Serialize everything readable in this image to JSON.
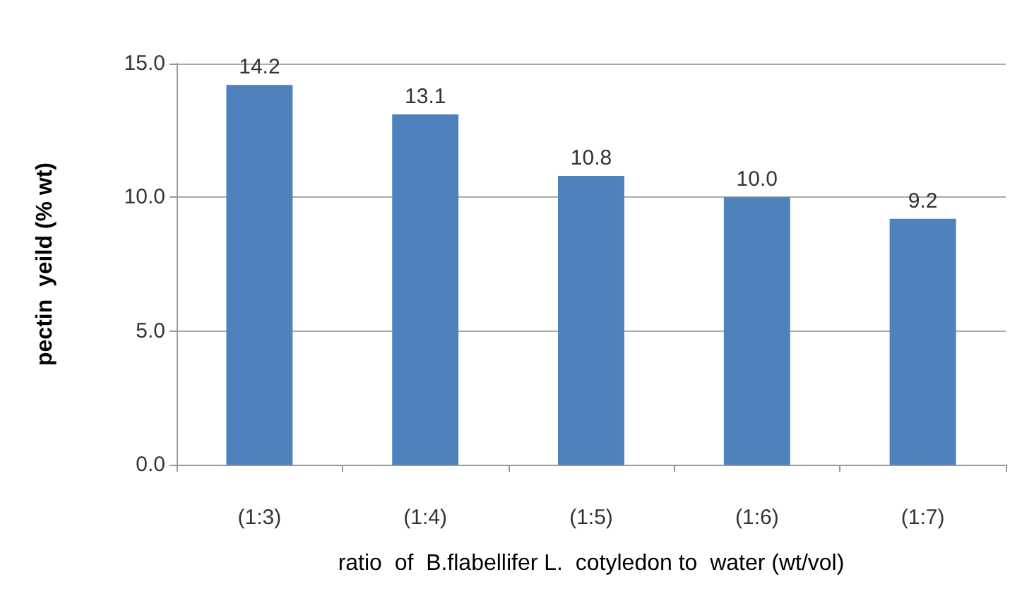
{
  "chart_data": {
    "type": "bar",
    "xlabel": "ratio  of  B.flabellifer L.  cotyledon to  water (wt/vol)",
    "ylabel": "pectin  yeild (% wt)",
    "categories": [
      "(1:3)",
      "(1:4)",
      "(1:5)",
      "(1:6)",
      "(1:7)"
    ],
    "values": [
      14.2,
      13.1,
      10.8,
      10.0,
      9.2
    ],
    "value_labels": [
      "14.2",
      "13.1",
      "10.8",
      "10.0",
      "9.2"
    ],
    "color": "#4f81bd",
    "ylim": [
      0,
      15
    ],
    "yticks": [
      {
        "value": 0,
        "label": "0.0"
      },
      {
        "value": 5,
        "label": "5.0"
      },
      {
        "value": 10,
        "label": "10.0"
      },
      {
        "value": 15,
        "label": "15.0"
      }
    ],
    "grid": "y"
  }
}
